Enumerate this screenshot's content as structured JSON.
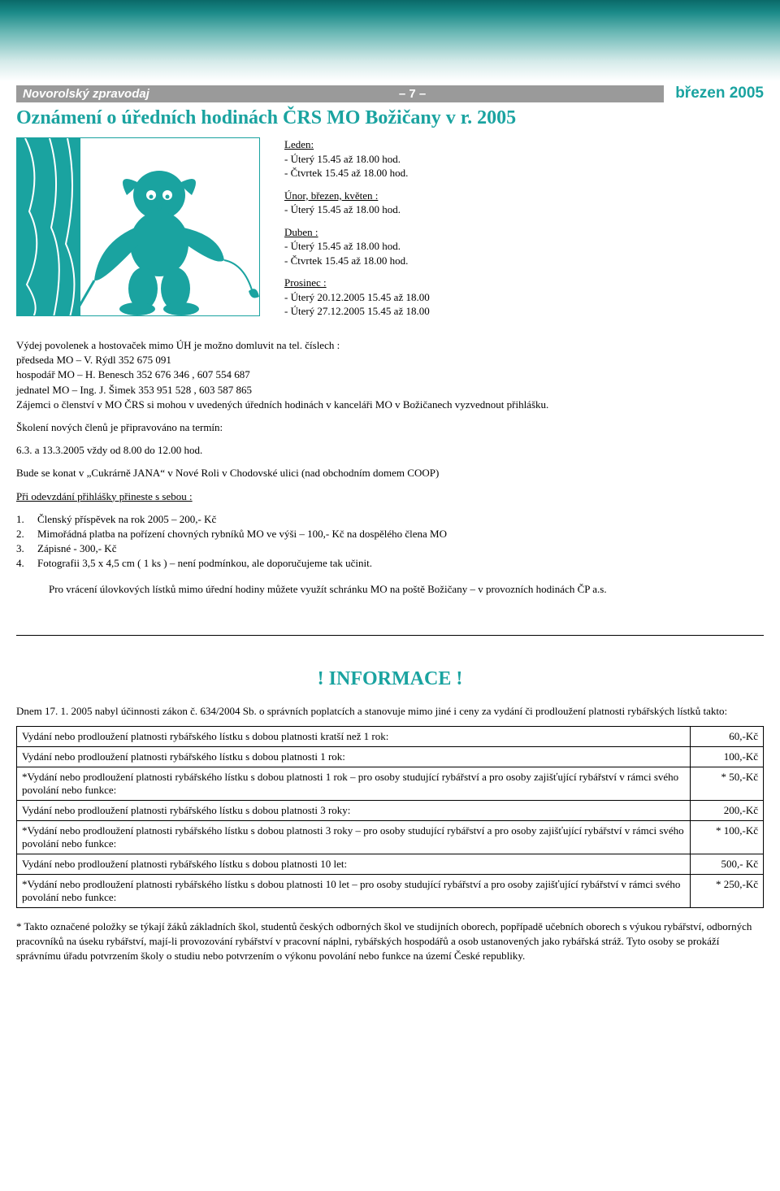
{
  "header": {
    "left": "Novorolský zpravodaj",
    "mid": "– 7 –",
    "right": "březen 2005"
  },
  "title": "Oznámení o úředních hodinách ČRS MO Božičany v r. 2005",
  "schedule": [
    {
      "hd": "Leden:",
      "lines": [
        "- Úterý 15.45 až 18.00 hod.",
        "- Čtvrtek 15.45 až 18.00 hod."
      ]
    },
    {
      "hd": "Únor, březen, květen :",
      "lines": [
        "- Úterý 15.45 až 18.00 hod."
      ]
    },
    {
      "hd": "Duben :",
      "lines": [
        "- Úterý 15.45 až 18.00 hod.",
        "- Čtvrtek 15.45 až 18.00 hod."
      ]
    },
    {
      "hd": "Prosinec :",
      "lines": [
        "- Úterý 20.12.2005 15.45 až 18.00",
        "- Úterý 27.12.2005 15.45 až 18.00"
      ]
    }
  ],
  "contacts_intro": "Výdej povolenek a hostovaček mimo ÚH je možno domluvit na tel. číslech :",
  "contacts": [
    "předseda MO – V. Rýdl 352 675 091",
    "hospodář MO – H. Benesch 352 676 346 , 607 554 687",
    "jednatel MO – Ing. J. Šimek 353 951 528 , 603 587 865"
  ],
  "interest": "Zájemci o členství v MO ČRS si mohou v uvedených úředních hodinách v kanceláři MO v Božičanech vyzvednout přihlášku.",
  "training_intro": "Školení nových členů je připravováno na termín:",
  "training_dates": "6.3. a 13.3.2005 vždy od 8.00 do 12.00 hod.",
  "venue": "Bude se konat v „Cukrárně JANA“ v Nové Roli v Chodovské ulici (nad obchodním domem COOP)",
  "bring_hd": "Při odevzdání přihlášky přineste s sebou :",
  "bring": [
    "Členský příspěvek na rok 2005 – 200,- Kč",
    "Mimořádná platba na pořízení chovných rybníků MO ve výši – 100,- Kč na dospělého člena MO",
    "Zápisné - 300,- Kč",
    "Fotografii 3,5 x 4,5 cm ( 1 ks ) – není podmínkou, ale doporučujeme tak učinit."
  ],
  "return_note": "Pro vrácení úlovkových lístků mimo úřední hodiny můžete využít schránku MO na poště Božičany – v provozních hodinách ČP a.s.",
  "info_heading": "!  INFORMACE  !",
  "info_intro": "Dnem 17. 1. 2005 nabyl účinnosti zákon č. 634/2004 Sb. o správních poplatcích a stanovuje mimo jiné i ceny za vydání či prodloužení platnosti rybářských lístků takto:",
  "fees": [
    {
      "desc": "Vydání nebo prodloužení platnosti rybářského lístku s dobou platnosti kratší než 1 rok:",
      "price": "60,-Kč"
    },
    {
      "desc": "Vydání nebo prodloužení platnosti rybářského lístku s dobou platnosti 1 rok:",
      "price": "100,-Kč"
    },
    {
      "desc": "*Vydání nebo prodloužení platnosti rybářského lístku s dobou platnosti 1 rok – pro osoby studující rybářství a pro osoby zajišťující rybářství v rámci svého povolání nebo funkce:",
      "price": "* 50,-Kč"
    },
    {
      "desc": "Vydání nebo prodloužení platnosti rybářského lístku s dobou platnosti 3 roky:",
      "price": "200,-Kč"
    },
    {
      "desc": "*Vydání nebo prodloužení platnosti rybářského lístku s dobou platnosti 3 roky – pro osoby studující rybářství a pro osoby zajišťující rybářství v rámci svého povolání nebo funkce:",
      "price": "* 100,-Kč"
    },
    {
      "desc": "Vydání nebo prodloužení platnosti rybářského lístku s dobou platnosti 10 let:",
      "price": "500,- Kč"
    },
    {
      "desc": "*Vydání nebo prodloužení platnosti rybářského lístku s dobou platnosti 10 let – pro osoby studující rybářství a pro osoby zajišťující rybářství v rámci svého povolání nebo funkce:",
      "price": "* 250,-Kč"
    }
  ],
  "footnote": "* Takto označené položky se týkají žáků základních škol, studentů českých odborných škol ve studijních oborech, popřípadě učebních oborech s výukou rybářství, odborných pracovníků na úseku rybářství, mají-li provozování rybářství v pracovní náplni, rybářských hospodářů a osob ustanovených jako rybářská stráž. Tyto osoby se prokáží správnímu úřadu potvrzením školy o studiu nebo potvrzením o výkonu povolání nebo funkce na území České republiky.",
  "colors": {
    "accent": "#1aa3a0",
    "grey": "#9a9a9a"
  }
}
